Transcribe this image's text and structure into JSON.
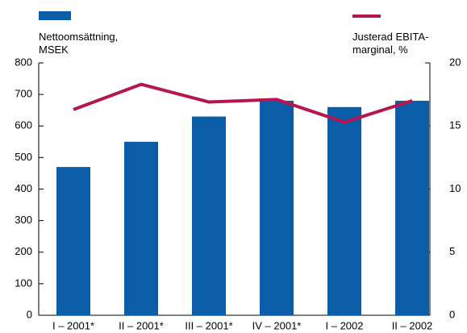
{
  "chart_data": {
    "type": "bar_line",
    "categories": [
      "I – 2001*",
      "II – 2001*",
      "III – 2001*",
      "IV – 2001*",
      "I – 2002",
      "II – 2002"
    ],
    "series": [
      {
        "name": "Nettoomsättning, MSEK",
        "color": "#0a5ea8",
        "type": "bar",
        "values": [
          470,
          550,
          630,
          680,
          660,
          680
        ]
      },
      {
        "name": "Justerad EBITA-marginal, %",
        "color": "#b5164f",
        "type": "line",
        "axis": "y2",
        "values": [
          16.3,
          18.3,
          16.9,
          17.1,
          15.3,
          17.0
        ]
      }
    ],
    "ylim": [
      0,
      800
    ],
    "yticks": [
      0,
      100,
      200,
      300,
      400,
      500,
      600,
      700,
      800
    ],
    "y2lim": [
      0,
      20
    ],
    "y2ticks": [
      0,
      5,
      10,
      15,
      20
    ],
    "grid": false
  }
}
